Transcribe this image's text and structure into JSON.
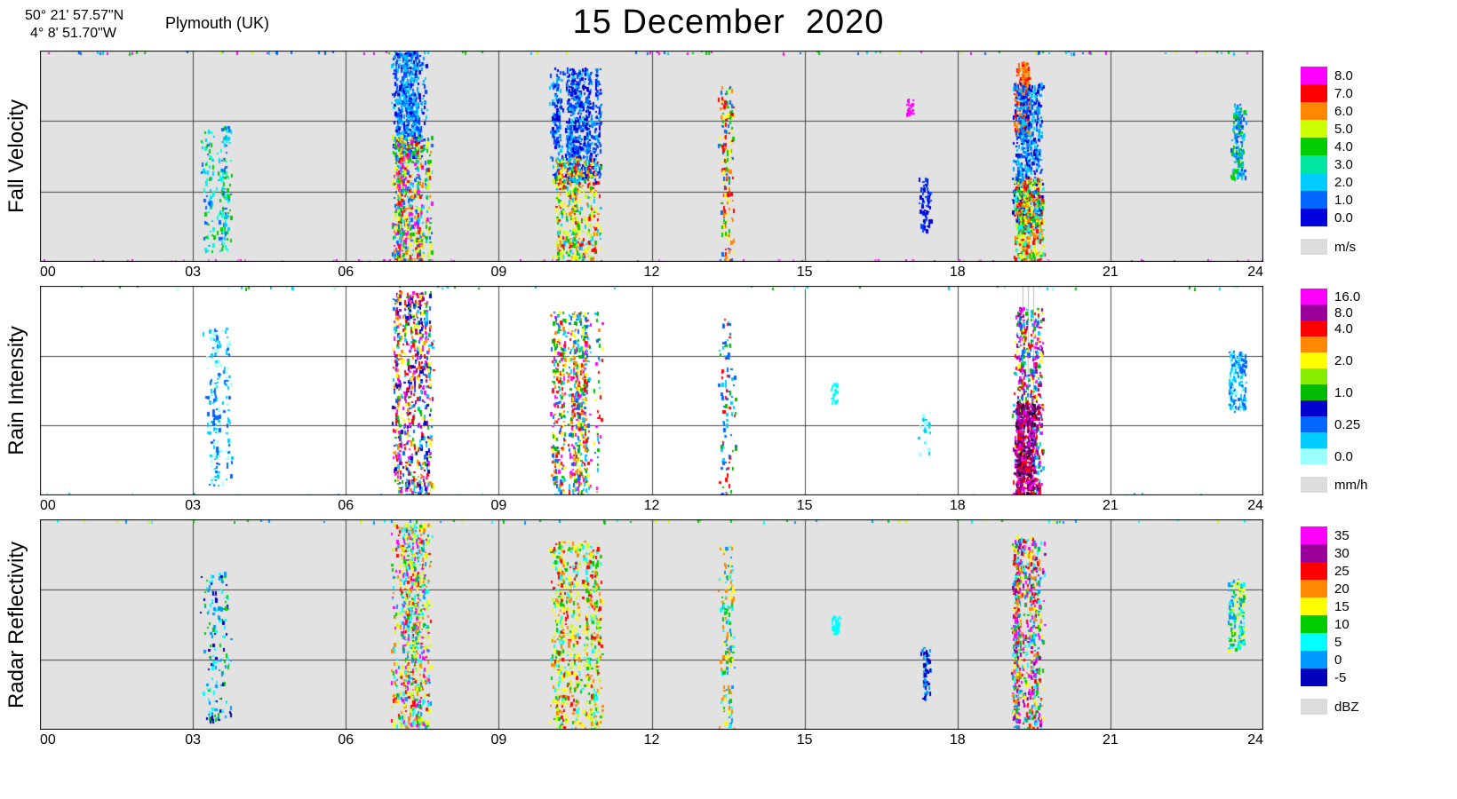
{
  "header": {
    "latitude": "50° 21' 57.57\"N",
    "longitude": "4°  8' 51.70\"W",
    "station": "Plymouth (UK)",
    "title": "15 December  2020"
  },
  "axes": {
    "x_ticks": [
      "00",
      "03",
      "06",
      "09",
      "12",
      "15",
      "18",
      "21",
      "24"
    ],
    "x_tick_hours": [
      0,
      3,
      6,
      9,
      12,
      15,
      18,
      21,
      24
    ],
    "x_range_hours": [
      0,
      24
    ]
  },
  "chart_data": [
    {
      "type": "heatmap",
      "name": "fall_velocity",
      "ylabel": "Fall Velocity",
      "unit": "m/s",
      "bg": "#E2E2E2",
      "x_range": [
        0,
        24
      ],
      "legend": [
        {
          "color": "#FF00FF",
          "label": "8.0"
        },
        {
          "color": "#FF0000",
          "label": "7.0"
        },
        {
          "color": "#FF8800",
          "label": "6.0"
        },
        {
          "color": "#CCFF00",
          "label": "5.0"
        },
        {
          "color": "#00CC00",
          "label": "4.0"
        },
        {
          "color": "#00E5A0",
          "label": "3.0"
        },
        {
          "color": "#00CCFF",
          "label": "2.0"
        },
        {
          "color": "#0066FF",
          "label": "1.0"
        },
        {
          "color": "#0000DD",
          "label": "0.0"
        }
      ],
      "legend_nodata": {
        "color": "#DCDCDC",
        "label": "m/s"
      },
      "events": [
        {
          "t": [
            3.15,
            3.7
          ],
          "y": [
            0.35,
            0.95
          ],
          "cols": 10,
          "palette": [
            "#00CCFF",
            "#00FFDD",
            "#0066FF",
            "#00CC00"
          ]
        },
        {
          "t": [
            6.95,
            7.65
          ],
          "y": [
            0.0,
            0.5
          ],
          "cols": 38,
          "palette": [
            "#0000DD",
            "#0044FF",
            "#0099FF",
            "#00CCFF"
          ]
        },
        {
          "t": [
            6.95,
            7.65
          ],
          "y": [
            0.4,
            1.0
          ],
          "cols": 38,
          "palette": [
            "#00CC00",
            "#CCFF00",
            "#FFFF00",
            "#FF8800",
            "#FF0000",
            "#FF00FF",
            "#00CCFF",
            "#0066FF"
          ]
        },
        {
          "t": [
            10.05,
            11.0
          ],
          "y": [
            0.08,
            0.62
          ],
          "cols": 42,
          "palette": [
            "#0000DD",
            "#0044FF",
            "#0099FF",
            "#00CCFF",
            "#0000DD",
            "#0044FF"
          ]
        },
        {
          "t": [
            10.1,
            11.0
          ],
          "y": [
            0.5,
            1.0
          ],
          "cols": 30,
          "palette": [
            "#00CC00",
            "#CCFF00",
            "#FFFF00",
            "#FF8800",
            "#FF0000",
            "#00CCFF"
          ]
        },
        {
          "t": [
            13.35,
            13.6
          ],
          "y": [
            0.15,
            1.0
          ],
          "cols": 9,
          "palette": [
            "#FF8800",
            "#FF0000",
            "#00CC00",
            "#0066FF",
            "#FFFF00"
          ]
        },
        {
          "t": [
            17.0,
            17.08
          ],
          "y": [
            0.22,
            0.3
          ],
          "cols": 1,
          "palette": [
            "#FF00FF"
          ]
        },
        {
          "t": [
            17.3,
            17.45
          ],
          "y": [
            0.6,
            0.85
          ],
          "cols": 3,
          "palette": [
            "#0000DD",
            "#0044FF"
          ]
        },
        {
          "t": [
            19.1,
            19.4
          ],
          "y": [
            0.05,
            0.4
          ],
          "cols": 14,
          "palette": [
            "#FF8800",
            "#FF0000",
            "#FF6600"
          ]
        },
        {
          "t": [
            19.1,
            19.65
          ],
          "y": [
            0.15,
            0.85
          ],
          "cols": 36,
          "palette": [
            "#0000DD",
            "#0044FF",
            "#0099FF",
            "#00CCFF"
          ]
        },
        {
          "t": [
            19.15,
            19.65
          ],
          "y": [
            0.6,
            1.0
          ],
          "cols": 26,
          "palette": [
            "#00CC00",
            "#CCFF00",
            "#FFFF00",
            "#FF8800",
            "#FF0000",
            "#00FFDD"
          ]
        },
        {
          "t": [
            23.35,
            23.6
          ],
          "y": [
            0.25,
            0.6
          ],
          "cols": 9,
          "palette": [
            "#0044FF",
            "#0099FF",
            "#00CCFF",
            "#00CC00"
          ]
        }
      ],
      "top_noise": {
        "count": 90,
        "palette": [
          "#00CC00",
          "#00CCFF",
          "#FF00FF",
          "#0066FF",
          "#CCFF00"
        ]
      },
      "bottom_noise": {
        "count": 75,
        "palette": [
          "#FF00FF",
          "#FF66FF"
        ]
      }
    },
    {
      "type": "heatmap",
      "name": "rain_intensity",
      "ylabel": "Rain Intensity",
      "unit": "mm/h",
      "bg": "#FFFFFF",
      "x_range": [
        0,
        24
      ],
      "gray_lines": [
        19.28,
        19.38,
        19.48
      ],
      "legend": [
        {
          "color": "#FF00FF",
          "label": "16.0"
        },
        {
          "color": "#990099",
          "label": "8.0"
        },
        {
          "color": "#FF0000",
          "label": "4.0"
        },
        {
          "color": "#FF8800",
          "label": ""
        },
        {
          "color": "#FFFF00",
          "label": "2.0"
        },
        {
          "color": "#88EE00",
          "label": ""
        },
        {
          "color": "#00BB00",
          "label": "1.0"
        },
        {
          "color": "#0000CC",
          "label": ""
        },
        {
          "color": "#0066FF",
          "label": "0.25"
        },
        {
          "color": "#00CCFF",
          "label": ""
        },
        {
          "color": "#99FFFF",
          "label": "0.0"
        }
      ],
      "legend_nodata": {
        "color": "#DCDCDC",
        "label": "mm/h"
      },
      "events": [
        {
          "t": [
            3.15,
            3.7
          ],
          "y": [
            0.2,
            0.95
          ],
          "cols": 10,
          "palette": [
            "#00CCFF",
            "#99FFFF",
            "#0066FF"
          ]
        },
        {
          "t": [
            6.95,
            7.65
          ],
          "y": [
            0.02,
            1.0
          ],
          "cols": 45,
          "palette": [
            "#FF0000",
            "#FF8800",
            "#FFFF00",
            "#00BB00",
            "#0066FF",
            "#00CCFF",
            "#FF00FF",
            "#990099",
            "#0000CC"
          ]
        },
        {
          "t": [
            10.05,
            11.0
          ],
          "y": [
            0.12,
            1.0
          ],
          "cols": 40,
          "palette": [
            "#FF0000",
            "#FF8800",
            "#FFFF00",
            "#00BB00",
            "#0066FF",
            "#00CCFF",
            "#FF00FF"
          ]
        },
        {
          "t": [
            13.35,
            13.6
          ],
          "y": [
            0.15,
            1.0
          ],
          "cols": 8,
          "palette": [
            "#FF0000",
            "#0066FF",
            "#00CCFF",
            "#00BB00"
          ]
        },
        {
          "t": [
            15.55,
            15.65
          ],
          "y": [
            0.45,
            0.55
          ],
          "cols": 2,
          "palette": [
            "#00FFFF"
          ]
        },
        {
          "t": [
            17.25,
            17.4
          ],
          "y": [
            0.6,
            0.8
          ],
          "cols": 2,
          "palette": [
            "#00CCFF",
            "#99FFFF"
          ]
        },
        {
          "t": [
            19.1,
            19.65
          ],
          "y": [
            0.1,
            1.0
          ],
          "cols": 40,
          "palette": [
            "#FF00FF",
            "#990099",
            "#FF0000",
            "#0066FF",
            "#00CCFF",
            "#FFFF00",
            "#00BB00"
          ]
        },
        {
          "t": [
            19.15,
            19.55
          ],
          "y": [
            0.55,
            1.0
          ],
          "cols": 25,
          "palette": [
            "#990099",
            "#660066",
            "#330033",
            "#FF00FF",
            "#FF0000"
          ]
        },
        {
          "t": [
            23.35,
            23.6
          ],
          "y": [
            0.3,
            0.6
          ],
          "cols": 8,
          "palette": [
            "#0066FF",
            "#00CCFF",
            "#99FFFF"
          ]
        }
      ],
      "top_noise": {
        "count": 40,
        "palette": [
          "#00CCFF",
          "#00BB00",
          "#99FFFF"
        ]
      },
      "bottom_noise": {
        "count": 20,
        "palette": [
          "#00CCFF",
          "#99FFFF"
        ]
      }
    },
    {
      "type": "heatmap",
      "name": "radar_reflectivity",
      "ylabel": "Radar Reflectivity",
      "unit": "dBZ",
      "bg": "#E2E2E2",
      "x_range": [
        0,
        24
      ],
      "legend": [
        {
          "color": "#FF00FF",
          "label": "35"
        },
        {
          "color": "#990099",
          "label": "30"
        },
        {
          "color": "#FF0000",
          "label": "25"
        },
        {
          "color": "#FF8800",
          "label": "20"
        },
        {
          "color": "#FFFF00",
          "label": "15"
        },
        {
          "color": "#00CC00",
          "label": "10"
        },
        {
          "color": "#00FFFF",
          "label": "5"
        },
        {
          "color": "#0099FF",
          "label": "0"
        },
        {
          "color": "#0000BB",
          "label": "-5"
        }
      ],
      "legend_nodata": {
        "color": "#DCDCDC",
        "label": "dBZ"
      },
      "events": [
        {
          "t": [
            3.15,
            3.7
          ],
          "y": [
            0.25,
            0.95
          ],
          "cols": 12,
          "palette": [
            "#00FFFF",
            "#0099FF",
            "#00CC00",
            "#0000BB"
          ]
        },
        {
          "t": [
            6.95,
            7.65
          ],
          "y": [
            0.02,
            1.0
          ],
          "cols": 45,
          "palette": [
            "#FFFF00",
            "#FF8800",
            "#00CC00",
            "#00FFFF",
            "#FF0000",
            "#FF00FF",
            "#0099FF",
            "#CCFF00"
          ]
        },
        {
          "t": [
            10.05,
            11.0
          ],
          "y": [
            0.1,
            1.0
          ],
          "cols": 42,
          "palette": [
            "#FFFF00",
            "#FF8800",
            "#00CC00",
            "#CCFF00",
            "#00FFFF",
            "#FF0000"
          ]
        },
        {
          "t": [
            13.35,
            13.6
          ],
          "y": [
            0.12,
            1.0
          ],
          "cols": 9,
          "palette": [
            "#FF8800",
            "#00CC00",
            "#0099FF",
            "#FFFF00",
            "#00FFFF"
          ]
        },
        {
          "t": [
            15.55,
            15.65
          ],
          "y": [
            0.45,
            0.55
          ],
          "cols": 2,
          "palette": [
            "#00FFFF"
          ]
        },
        {
          "t": [
            17.3,
            17.45
          ],
          "y": [
            0.6,
            0.85
          ],
          "cols": 3,
          "palette": [
            "#0000BB",
            "#0099FF"
          ]
        },
        {
          "t": [
            19.1,
            19.65
          ],
          "y": [
            0.08,
            1.0
          ],
          "cols": 42,
          "palette": [
            "#FF00FF",
            "#990099",
            "#FF0000",
            "#FF8800",
            "#FFFF00",
            "#00FFFF",
            "#00CC00",
            "#0099FF"
          ]
        },
        {
          "t": [
            23.35,
            23.6
          ],
          "y": [
            0.28,
            0.62
          ],
          "cols": 9,
          "palette": [
            "#00CC00",
            "#00FFFF",
            "#FFFF00",
            "#0099FF"
          ]
        }
      ],
      "top_noise": {
        "count": 60,
        "palette": [
          "#00CC00",
          "#00FFFF",
          "#0099FF",
          "#CCFF00"
        ]
      },
      "bottom_noise": {
        "count": 0,
        "palette": [
          "#FFFFFF"
        ]
      }
    }
  ]
}
